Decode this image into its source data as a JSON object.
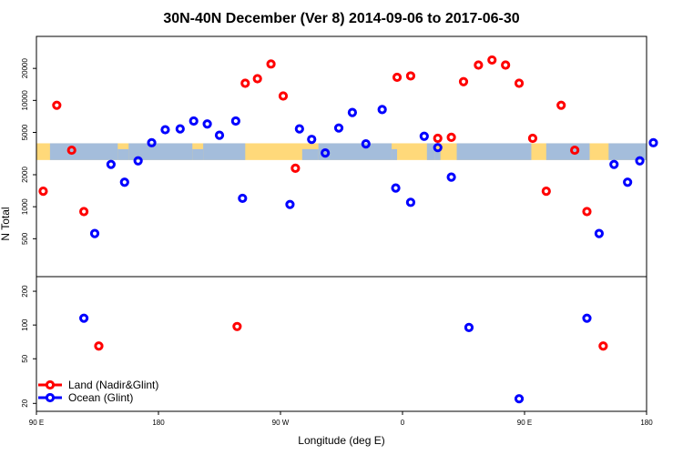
{
  "chart_data": {
    "type": "scatter",
    "title": "30N-40N December (Ver 8)   2014-09-06 to 2017-06-30",
    "xlabel": "Longitude (deg E)",
    "ylabel": "N Total",
    "x_ticks": [
      {
        "value": 90,
        "label": "90 E"
      },
      {
        "value": 180,
        "label": "180"
      },
      {
        "value": 270,
        "label": "90 W"
      },
      {
        "value": 360,
        "label": "0"
      },
      {
        "value": 450,
        "label": "90 E"
      },
      {
        "value": 540,
        "label": "180"
      }
    ],
    "xlim": [
      90,
      540
    ],
    "upper_panel": {
      "scale": "log",
      "ylim": [
        220,
        40000
      ],
      "y_ticks": [
        500,
        1000,
        2000,
        5000,
        10000,
        20000
      ],
      "background_band": {
        "ymin": 2750,
        "ymax": 3950,
        "land_color": "#ffd97a",
        "ocean_color": "#a4bddb"
      }
    },
    "lower_panel": {
      "scale": "log",
      "ylim": [
        17,
        270
      ],
      "y_ticks": [
        20,
        50,
        100,
        200
      ]
    },
    "series": [
      {
        "name": "Land (Nadir&Glint)",
        "color": "#ff0000",
        "points": [
          {
            "x": 95,
            "y": 1400
          },
          {
            "x": 105,
            "y": 9000
          },
          {
            "x": 116,
            "y": 3400
          },
          {
            "x": 125,
            "y": 900
          },
          {
            "x": 136,
            "y": 65
          },
          {
            "x": 238,
            "y": 97
          },
          {
            "x": 244,
            "y": 14500
          },
          {
            "x": 253,
            "y": 16000
          },
          {
            "x": 263,
            "y": 22000
          },
          {
            "x": 272,
            "y": 11000
          },
          {
            "x": 281,
            "y": 2300
          },
          {
            "x": 356,
            "y": 16500
          },
          {
            "x": 366,
            "y": 17000
          },
          {
            "x": 386,
            "y": 4400
          },
          {
            "x": 396,
            "y": 4500
          },
          {
            "x": 405,
            "y": 15000
          },
          {
            "x": 416,
            "y": 21500
          },
          {
            "x": 426,
            "y": 24000
          },
          {
            "x": 436,
            "y": 21500
          },
          {
            "x": 446,
            "y": 14500
          },
          {
            "x": 456,
            "y": 4400
          },
          {
            "x": 466,
            "y": 1400
          },
          {
            "x": 477,
            "y": 9000
          },
          {
            "x": 487,
            "y": 3400
          },
          {
            "x": 496,
            "y": 900
          },
          {
            "x": 508,
            "y": 65
          }
        ]
      },
      {
        "name": "Ocean (Glint)",
        "color": "#0000ff",
        "points": [
          {
            "x": 125,
            "y": 115
          },
          {
            "x": 133,
            "y": 560
          },
          {
            "x": 145,
            "y": 2500
          },
          {
            "x": 155,
            "y": 1700
          },
          {
            "x": 165,
            "y": 2700
          },
          {
            "x": 175,
            "y": 4000
          },
          {
            "x": 185,
            "y": 5300
          },
          {
            "x": 196,
            "y": 5400
          },
          {
            "x": 206,
            "y": 6400
          },
          {
            "x": 216,
            "y": 6000
          },
          {
            "x": 225,
            "y": 4700
          },
          {
            "x": 237,
            "y": 6400
          },
          {
            "x": 242,
            "y": 1200
          },
          {
            "x": 284,
            "y": 5400
          },
          {
            "x": 293,
            "y": 4300
          },
          {
            "x": 303,
            "y": 3200
          },
          {
            "x": 313,
            "y": 5500
          },
          {
            "x": 323,
            "y": 7700
          },
          {
            "x": 333,
            "y": 3900
          },
          {
            "x": 345,
            "y": 8200
          },
          {
            "x": 355,
            "y": 1500
          },
          {
            "x": 366,
            "y": 1100
          },
          {
            "x": 376,
            "y": 4600
          },
          {
            "x": 386,
            "y": 3600
          },
          {
            "x": 396,
            "y": 1900
          },
          {
            "x": 409,
            "y": 95
          },
          {
            "x": 446,
            "y": 22
          },
          {
            "x": 496,
            "y": 115
          },
          {
            "x": 505,
            "y": 560
          },
          {
            "x": 516,
            "y": 2500
          },
          {
            "x": 526,
            "y": 1700
          },
          {
            "x": 535,
            "y": 2700
          },
          {
            "x": 545,
            "y": 4000
          },
          {
            "x": 277,
            "y": 1050
          }
        ]
      }
    ],
    "legend_position": "bottom-left"
  }
}
